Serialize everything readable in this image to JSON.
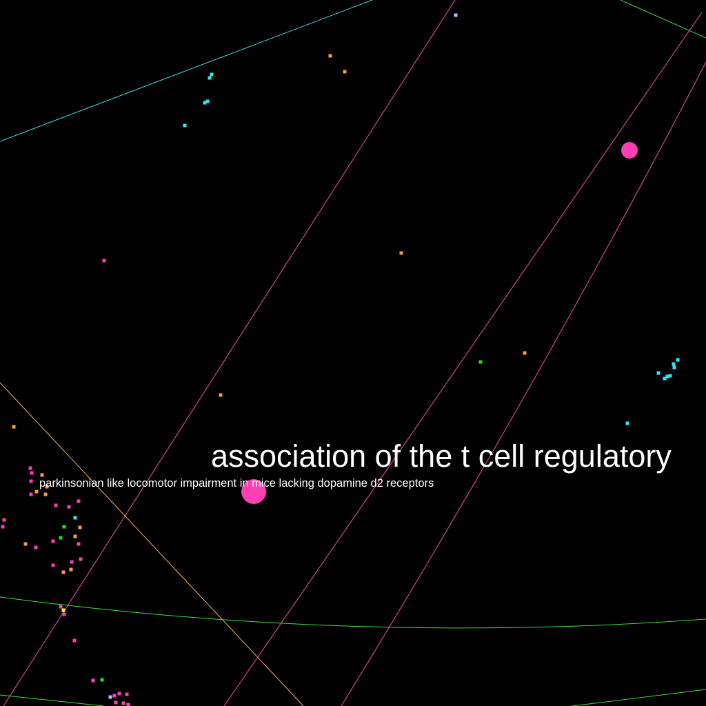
{
  "labels": {
    "large": "association of the t cell regulatory",
    "small": "parkinsonian like locomotor impairment in mice lacking dopamine d2 receptors"
  },
  "colors": {
    "background": "#000000",
    "cyan": "#33e6f0",
    "orange": "#ff9a4a",
    "pink": "#ff3fb4",
    "green": "#22dd22",
    "lavender": "#c9b3ff",
    "yellow": "#ffee22",
    "peach": "#ffae66",
    "line_cyan": "#3fe0ea",
    "line_pink": "#ff4fb0",
    "line_green": "#3ee03e",
    "line_peach": "#ffb36a"
  }
}
